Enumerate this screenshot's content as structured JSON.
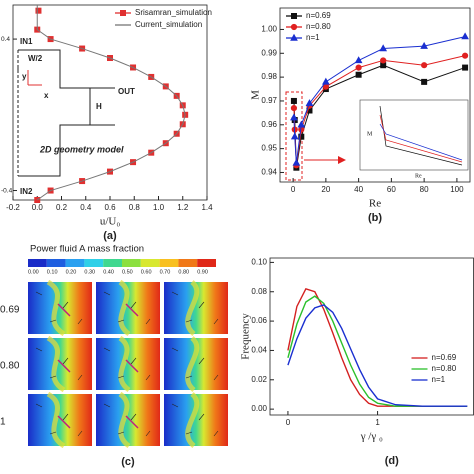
{
  "chart_data": [
    {
      "type": "line",
      "label": "(a)",
      "xlabel": "u/U₀",
      "xlim": [
        -0.2,
        1.4
      ],
      "xticks": [
        -0.2,
        {
          "value": 0,
          "label": "0.0"
        },
        0.2,
        0.4,
        0.6,
        0.8,
        {
          "value": 1,
          "label": "1.0"
        },
        1.2,
        1.4
      ],
      "ylim": [
        -0.45,
        0.58
      ],
      "yticks": [
        -0.4,
        0.4
      ],
      "legend": "upper right",
      "annotations": [
        "IN1",
        "W/2",
        "y",
        "x",
        "H",
        "OUT",
        "2D geometry model",
        "IN2"
      ],
      "series": [
        {
          "name": "Srisamran_simulation",
          "color": "#e03030",
          "marker": "square",
          "x": [
            0.01,
            0.0,
            0.11,
            0.37,
            0.6,
            0.79,
            0.94,
            1.06,
            1.15,
            1.2,
            1.22,
            1.2,
            1.15,
            1.06,
            0.94,
            0.79,
            0.6,
            0.37,
            0.11,
            0.0
          ],
          "values": [
            0.55,
            0.45,
            0.4,
            0.35,
            0.3,
            0.25,
            0.2,
            0.15,
            0.1,
            0.05,
            0,
            -0.05,
            -0.1,
            -0.15,
            -0.2,
            -0.25,
            -0.3,
            -0.35,
            -0.4,
            -0.45
          ]
        },
        {
          "name": "Current_simulation",
          "color": "#777777",
          "marker": "none",
          "x": [
            0.0,
            0.0,
            0.11,
            0.37,
            0.6,
            0.79,
            0.94,
            1.06,
            1.15,
            1.2,
            1.22,
            1.2,
            1.15,
            1.06,
            0.94,
            0.79,
            0.6,
            0.37,
            0.11,
            0.0
          ],
          "values": [
            0.58,
            0.45,
            0.4,
            0.35,
            0.3,
            0.25,
            0.2,
            0.15,
            0.1,
            0.05,
            0,
            -0.05,
            -0.1,
            -0.15,
            -0.2,
            -0.25,
            -0.3,
            -0.35,
            -0.4,
            -0.45
          ]
        }
      ]
    },
    {
      "type": "line",
      "label": "(b)",
      "xlabel": "Re",
      "ylabel": "M",
      "inset_labels": [
        "M",
        "Re"
      ],
      "xlim": [
        -8,
        108
      ],
      "xticks": [
        0,
        20,
        40,
        60,
        80,
        100
      ],
      "ylim": [
        0.936,
        1.009
      ],
      "yticks": [
        0.94,
        0.95,
        0.96,
        0.97,
        0.98,
        0.99,
        {
          "value": 1,
          "label": "1.00"
        }
      ],
      "legend": "upper left",
      "x": [
        0.5,
        1,
        2,
        5,
        10,
        20,
        40,
        55,
        80,
        105
      ],
      "series": [
        {
          "name": "n=0.69",
          "color": "#111111",
          "marker": "square",
          "values": [
            0.97,
            0.962,
            0.942,
            0.955,
            0.966,
            0.975,
            0.981,
            0.985,
            0.978,
            0.984
          ]
        },
        {
          "name": "n=0.80",
          "color": "#e02020",
          "marker": "circle",
          "values": [
            0.967,
            0.958,
            0.943,
            0.958,
            0.968,
            0.976,
            0.984,
            0.987,
            0.985,
            0.989
          ]
        },
        {
          "name": "n=1",
          "color": "#1a2fd0",
          "marker": "triangle",
          "values": [
            0.963,
            0.955,
            0.944,
            0.96,
            0.969,
            0.978,
            0.987,
            0.992,
            0.993,
            0.997
          ]
        }
      ]
    },
    {
      "type": "line",
      "label": "(d)",
      "xlabel": "γ /γ ₀",
      "ylabel": "Frequency",
      "xlim": [
        -0.2,
        2.07
      ],
      "xticks": [
        0,
        1
      ],
      "ylim": [
        -0.004,
        0.103
      ],
      "yticks": [
        {
          "value": 0,
          "label": "0.00"
        },
        {
          "value": 0.02,
          "label": "0.02"
        },
        {
          "value": 0.04,
          "label": "0.04"
        },
        {
          "value": 0.06,
          "label": "0.06"
        },
        {
          "value": 0.08,
          "label": "0.08"
        },
        {
          "value": 0.1,
          "label": "0.10"
        }
      ],
      "legend": "right",
      "x": [
        0,
        0.1,
        0.2,
        0.3,
        0.4,
        0.5,
        0.6,
        0.7,
        0.8,
        0.9,
        1.0,
        1.2,
        1.5,
        2.0
      ],
      "series": [
        {
          "name": "n=0.69",
          "color": "#d42020",
          "marker": "none",
          "values": [
            0.04,
            0.07,
            0.082,
            0.08,
            0.068,
            0.052,
            0.035,
            0.02,
            0.01,
            0.004,
            0.002,
            0.002,
            0.002,
            0.002
          ]
        },
        {
          "name": "n=0.80",
          "color": "#2bc02b",
          "marker": "none",
          "values": [
            0.035,
            0.058,
            0.073,
            0.077,
            0.072,
            0.06,
            0.045,
            0.03,
            0.017,
            0.008,
            0.004,
            0.002,
            0.002,
            0.002
          ]
        },
        {
          "name": "n=1",
          "color": "#1a2fd0",
          "marker": "none",
          "values": [
            0.03,
            0.048,
            0.062,
            0.069,
            0.071,
            0.066,
            0.055,
            0.041,
            0.027,
            0.015,
            0.007,
            0.003,
            0.002,
            0.002
          ]
        }
      ]
    }
  ],
  "panel_c": {
    "title": "Power fluid A mass fraction",
    "label": "(c)",
    "rows": [
      "0.69",
      "0.80",
      "1"
    ],
    "colors": [
      "#1a2cc8",
      "#1f5fe0",
      "#2aa0f0",
      "#30d0e8",
      "#40d890",
      "#8ce040",
      "#d8e830",
      "#f8c020",
      "#f07818",
      "#e02818"
    ],
    "colorbar_ticks": [
      {
        "value": 0,
        "label": "0.00"
      },
      {
        "value": 0.1,
        "label": "0.10"
      },
      {
        "value": 0.2,
        "label": "0.20"
      },
      {
        "value": 0.3,
        "label": "0.30"
      },
      {
        "value": 0.4,
        "label": "0.40"
      },
      {
        "value": 0.5,
        "label": "0.50"
      },
      {
        "value": 0.6,
        "label": "0.60"
      },
      {
        "value": 0.7,
        "label": "0.70"
      },
      {
        "value": 0.8,
        "label": "0.80"
      },
      {
        "value": 0.9,
        "label": "0.90"
      }
    ]
  }
}
